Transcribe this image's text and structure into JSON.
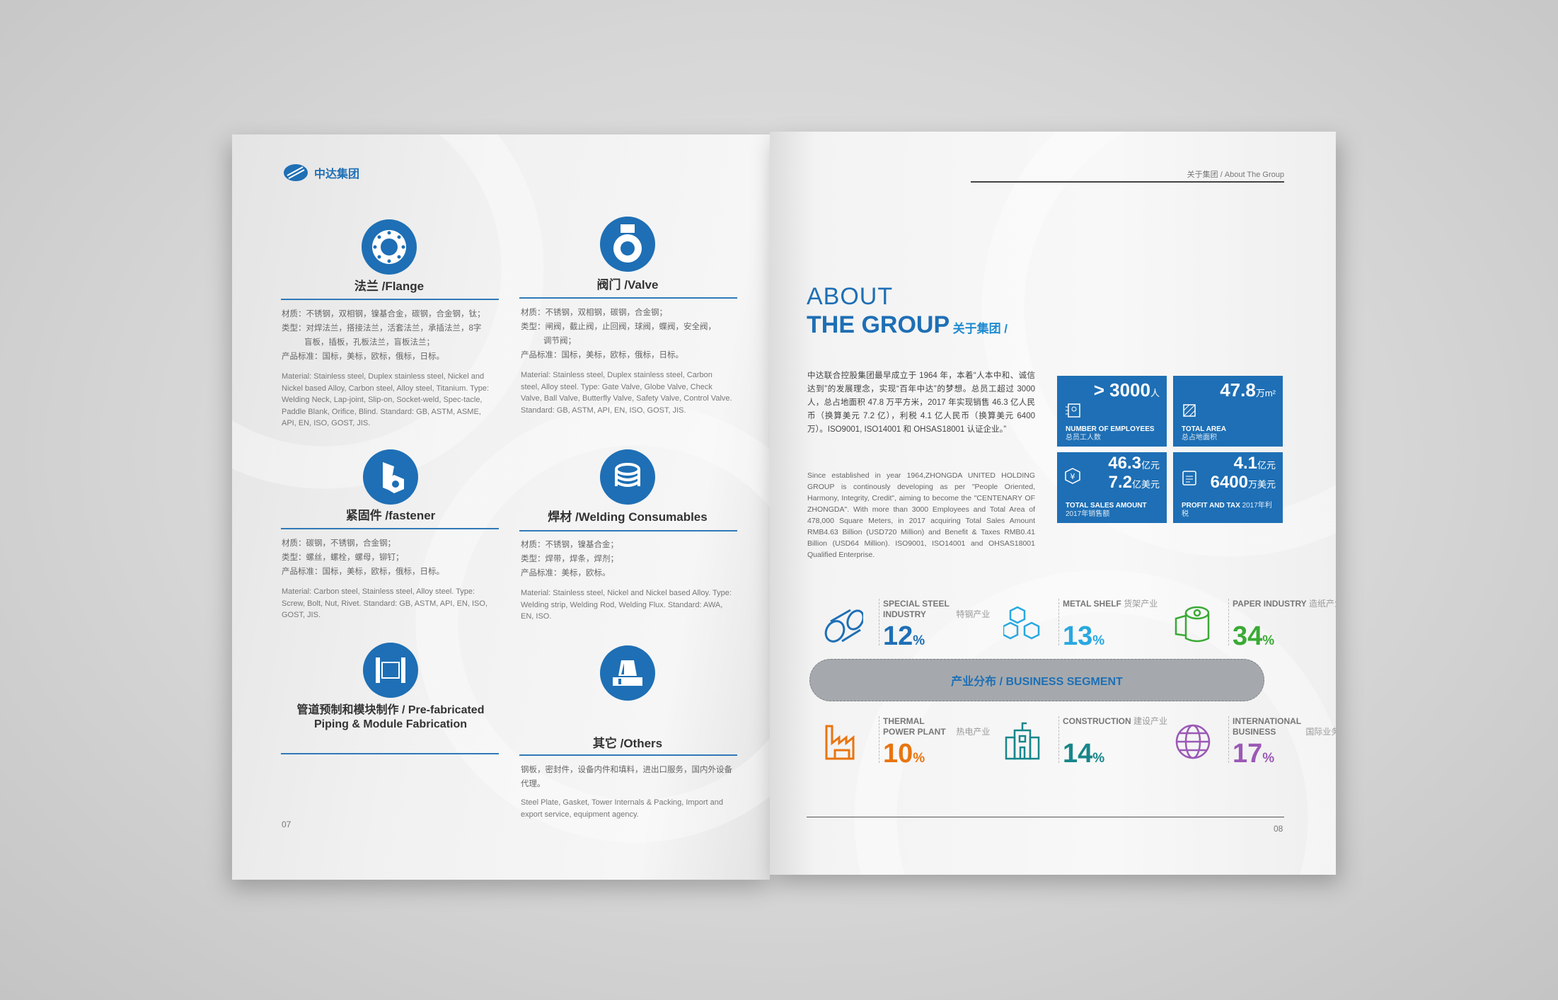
{
  "left_page": {
    "logo_text": "中达集团",
    "page_number": "07",
    "products": [
      {
        "icon": "flange-icon",
        "title": "法兰 /Flange",
        "cn": [
          "材质：不锈钢，双相钢，镍基合金，碳钢，合金钢，钛；",
          "类型：对焊法兰，搭接法兰，活套法兰，承插法兰，8字",
          "盲板，插板，孔板法兰，盲板法兰；",
          "产品标准：国标，美标，欧标，俄标，日标。"
        ],
        "en": "Material: Stainless steel, Duplex stainless steel, Nickel and Nickel based Alloy, Carbon steel, Alloy steel, Titanium. Type: Welding Neck, Lap-joint, Slip-on, Socket-weld, Spec-tacle, Paddle Blank, Orifice, Blind. Standard: GB, ASTM, ASME, API, EN, ISO, GOST, JIS."
      },
      {
        "icon": "valve-icon",
        "title": "阀门 /Valve",
        "cn": [
          "材质：不锈钢，双相钢，碳钢，合金钢；",
          "类型：闸阀，截止阀，止回阀，球阀，蝶阀，安全阀，",
          "调节阀；",
          "产品标准：国标，美标，欧标，俄标，日标。"
        ],
        "en": "Material: Stainless steel, Duplex stainless steel, Carbon steel, Alloy steel. Type: Gate Valve, Globe Valve, Check Valve, Ball Valve, Butterfly Valve, Safety Valve, Control Valve. Standard: GB, ASTM, API, EN, ISO, GOST, JIS."
      },
      {
        "icon": "fastener-icon",
        "title": "紧固件 /fastener",
        "cn": [
          "材质：碳钢，不锈钢，合金钢；",
          "类型：螺丝，螺栓，螺母，铆钉；",
          "产品标准：国标，美标，欧标，俄标，日标。"
        ],
        "en": "Material: Carbon steel, Stainless steel, Alloy steel. Type: Screw, Bolt, Nut, Rivet. Standard: GB, ASTM, API, EN, ISO, GOST, JIS."
      },
      {
        "icon": "welding-coil-icon",
        "title": "焊材 /Welding Consumables",
        "cn": [
          "材质：不锈钢，镍基合金；",
          "类型：焊带，焊条，焊剂；",
          "产品标准：美标，欧标。"
        ],
        "en": "Material: Stainless steel, Nickel and Nickel based Alloy. Type: Welding strip, Welding Rod, Welding Flux. Standard: AWA, EN, ISO."
      },
      {
        "icon": "pipe-spool-icon",
        "title": "管道预制和模块制作 / Pre-fabricated Piping & Module Fabrication",
        "cn": [],
        "en": ""
      },
      {
        "icon": "others-icon",
        "title": "其它 /Others",
        "cn": [
          "钢板，密封件，设备内件和填料，进出口服务，国内外设备代理。"
        ],
        "en": "Steel Plate, Gasket, Tower Internals & Packing, Import and export service, equipment agency."
      }
    ]
  },
  "right_page": {
    "header": "关于集团 / About The Group",
    "title_line1": "ABOUT",
    "title_line2": "THE GROUP",
    "title_cn": "关于集团 /",
    "intro_cn": "中达联合控股集团最早成立于 1964 年，本着“人本中和、诚信达到”的发展理念，实现“百年中达”的梦想。总员工超过 3000 人，总占地面积 47.8 万平方米，2017 年实现销售 46.3 亿人民币（换算美元 7.2 亿），利税 4.1 亿人民币（换算美元 6400 万）。ISO9001, ISO14001 和 OHSAS18001 认证企业。”",
    "intro_en": "Since established in year 1964,ZHONGDA UNITED HOLDING GROUP is continously developing as per \"People Oriented, Harmony, Integrity, Credit\", aiming to become the \"CENTENARY OF ZHONGDA\". With more than 3000 Employees and Total Area of 478,000 Square Meters, in 2017 acquiring Total Sales Amount RMB4.63 Billion (USD720 Million) and Benefit & Taxes RMB0.41 Billion (USD64 Million). ISO9001, ISO14001 and OHSAS18001 Qualified Enterprise.",
    "stats": [
      {
        "icon": "employees-icon",
        "value": "> 3000",
        "unit": "人",
        "label": "NUMBER OF EMPLOYEES",
        "label_cn": "总员工人数"
      },
      {
        "icon": "area-icon",
        "value": "47.8",
        "unit": "万m²",
        "label": "TOTAL AREA",
        "label_cn": "总占地面积"
      },
      {
        "icon": "yuan-badge-icon",
        "value": "46.3",
        "unit": "亿元",
        "value2": "7.2",
        "unit2": "亿美元",
        "label": "TOTAL SALES AMOUNT",
        "label_cn": "2017年销售额"
      },
      {
        "icon": "clipboard-icon",
        "value": "4.1",
        "unit": "亿元",
        "value2": "6400",
        "unit2": "万美元",
        "label": "PROFIT AND TAX",
        "label_cn": "2017年利税"
      }
    ],
    "segment_label": "产业分布 / BUSINESS SEGMENT",
    "segments": [
      {
        "icon": "steel-bar-icon",
        "name": "SPECIAL STEEL INDUSTRY",
        "name_cn": "特钢产业",
        "percent": "12",
        "color": "#1e6fb5"
      },
      {
        "icon": "cubes-icon",
        "name": "METAL SHELF",
        "name_cn": "货架产业",
        "percent": "13",
        "color": "#28a8e0"
      },
      {
        "icon": "paper-roll-icon",
        "name": "PAPER INDUSTRY",
        "name_cn": "造纸产业",
        "percent": "34",
        "color": "#3aaa35"
      },
      {
        "icon": "factory-icon",
        "name": "THERMAL POWER PLANT",
        "name_cn": "热电产业",
        "percent": "10",
        "color": "#e87511"
      },
      {
        "icon": "building-icon",
        "name": "CONSTRUCTION",
        "name_cn": "建设产业",
        "percent": "14",
        "color": "#17868a"
      },
      {
        "icon": "globe-icon",
        "name": "INTERNATIONAL BUSINESS",
        "name_cn": "国际业务",
        "percent": "17",
        "color": "#9b59b6"
      }
    ],
    "page_number": "08"
  }
}
